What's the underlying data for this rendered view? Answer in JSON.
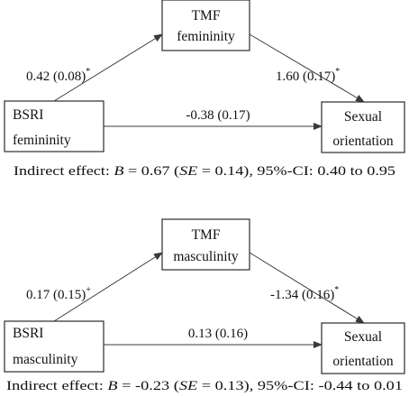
{
  "panels": [
    {
      "mediator": {
        "line1": "TMF",
        "line2": "femininity"
      },
      "predictor": {
        "line1": "BSRI",
        "line2": "femininity"
      },
      "outcome": {
        "line1": "Sexual",
        "line2": "orientation"
      },
      "path_a": {
        "value": "0.42 (0.08)",
        "sig": "*"
      },
      "path_b": {
        "value": "1.60 (0.17)",
        "sig": "*"
      },
      "path_c": {
        "value": "-0.38 (0.17)"
      },
      "footnote": {
        "p1": "Indirect effect: ",
        "b": "B",
        "p2": " = 0.67 (",
        "se": "SE",
        "p3": " = 0.14), 95%-CI: 0.40 to 0.95"
      }
    },
    {
      "mediator": {
        "line1": "TMF",
        "line2": "masculinity"
      },
      "predictor": {
        "line1": "BSRI",
        "line2": "masculinity"
      },
      "outcome": {
        "line1": "Sexual",
        "line2": "orientation"
      },
      "path_a": {
        "value": "0.17 (0.15)",
        "sig": "+"
      },
      "path_b": {
        "value": "-1.34 (0.16)",
        "sig": "*"
      },
      "path_c": {
        "value": "0.13 (0.16)"
      },
      "footnote": {
        "p1": "Indirect effect: ",
        "b": "B",
        "p2": " = -0.23 (",
        "se": "SE",
        "p3": " = 0.13), 95%-CI: -0.44 to 0.01"
      }
    }
  ]
}
